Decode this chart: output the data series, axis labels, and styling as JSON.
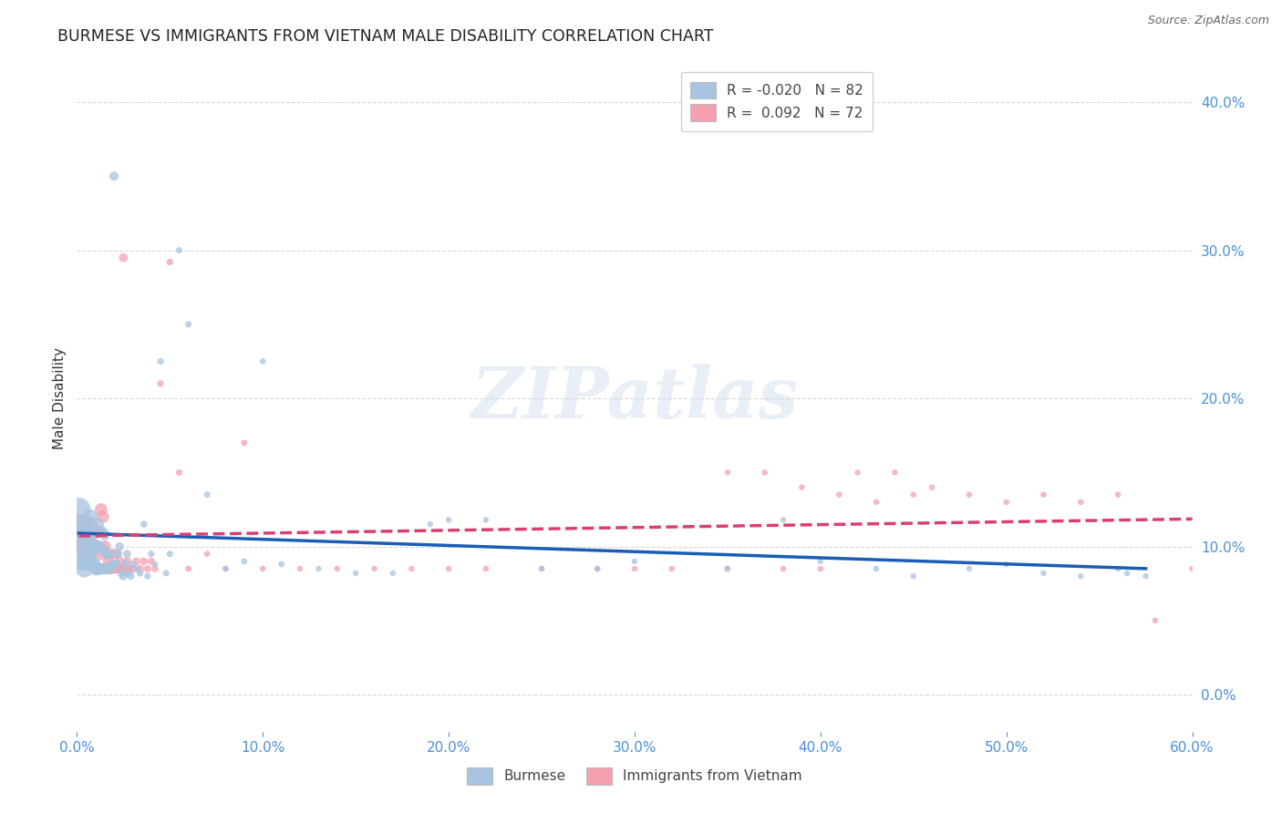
{
  "title": "BURMESE VS IMMIGRANTS FROM VIETNAM MALE DISABILITY CORRELATION CHART",
  "source": "Source: ZipAtlas.com",
  "ylabel": "Male Disability",
  "watermark": "ZIPatlas",
  "burmese_R": -0.02,
  "burmese_N": 82,
  "vietnam_R": 0.092,
  "vietnam_N": 72,
  "burmese_color": "#a8c4e0",
  "vietnam_color": "#f4a0b0",
  "burmese_line_color": "#1a5db5",
  "vietnam_line_color": "#d94070",
  "xlim": [
    0.0,
    0.6
  ],
  "ylim": [
    -0.025,
    0.425
  ],
  "yticks": [
    0.0,
    0.1,
    0.2,
    0.3,
    0.4
  ],
  "xticks": [
    0.0,
    0.1,
    0.2,
    0.3,
    0.4,
    0.5,
    0.6
  ],
  "background_color": "#ffffff",
  "grid_color": "#d8d8d8",
  "tick_label_color": "#4a90d9",
  "title_fontsize": 12.5,
  "axis_label_fontsize": 11,
  "legend_fontsize": 11,
  "burmese_x": [
    0.001,
    0.002,
    0.002,
    0.003,
    0.003,
    0.004,
    0.004,
    0.005,
    0.005,
    0.006,
    0.006,
    0.007,
    0.007,
    0.008,
    0.008,
    0.009,
    0.009,
    0.01,
    0.01,
    0.011,
    0.011,
    0.012,
    0.012,
    0.013,
    0.013,
    0.014,
    0.014,
    0.015,
    0.015,
    0.016,
    0.016,
    0.017,
    0.018,
    0.019,
    0.02,
    0.021,
    0.022,
    0.023,
    0.024,
    0.025,
    0.026,
    0.027,
    0.028,
    0.029,
    0.03,
    0.032,
    0.034,
    0.036,
    0.038,
    0.04,
    0.042,
    0.045,
    0.048,
    0.05,
    0.055,
    0.06,
    0.07,
    0.08,
    0.09,
    0.1,
    0.11,
    0.13,
    0.15,
    0.17,
    0.19,
    0.2,
    0.22,
    0.25,
    0.28,
    0.3,
    0.35,
    0.38,
    0.4,
    0.43,
    0.45,
    0.48,
    0.5,
    0.52,
    0.54,
    0.56,
    0.565,
    0.575
  ],
  "burmese_y": [
    0.125,
    0.11,
    0.095,
    0.105,
    0.09,
    0.115,
    0.085,
    0.105,
    0.09,
    0.11,
    0.09,
    0.12,
    0.095,
    0.1,
    0.088,
    0.11,
    0.088,
    0.1,
    0.085,
    0.115,
    0.085,
    0.1,
    0.085,
    0.11,
    0.085,
    0.098,
    0.085,
    0.108,
    0.085,
    0.095,
    0.085,
    0.095,
    0.085,
    0.088,
    0.35,
    0.088,
    0.095,
    0.1,
    0.082,
    0.08,
    0.088,
    0.095,
    0.082,
    0.08,
    0.088,
    0.085,
    0.082,
    0.115,
    0.08,
    0.095,
    0.088,
    0.225,
    0.082,
    0.095,
    0.3,
    0.25,
    0.135,
    0.085,
    0.09,
    0.225,
    0.088,
    0.085,
    0.082,
    0.082,
    0.115,
    0.118,
    0.118,
    0.085,
    0.085,
    0.09,
    0.085,
    0.118,
    0.09,
    0.085,
    0.08,
    0.085,
    0.088,
    0.082,
    0.08,
    0.085,
    0.082,
    0.08
  ],
  "burmese_size": [
    350,
    280,
    260,
    240,
    220,
    200,
    190,
    180,
    170,
    160,
    150,
    145,
    140,
    135,
    130,
    125,
    120,
    115,
    110,
    105,
    100,
    95,
    90,
    88,
    85,
    80,
    78,
    76,
    74,
    72,
    70,
    68,
    65,
    62,
    55,
    52,
    50,
    48,
    46,
    44,
    42,
    40,
    38,
    36,
    34,
    32,
    30,
    30,
    28,
    28,
    26,
    28,
    26,
    26,
    26,
    26,
    26,
    24,
    24,
    24,
    24,
    22,
    22,
    22,
    22,
    22,
    22,
    22,
    22,
    22,
    22,
    22,
    22,
    22,
    22,
    22,
    22,
    22,
    22,
    22,
    22,
    22
  ],
  "vietnam_x": [
    0.001,
    0.002,
    0.003,
    0.004,
    0.005,
    0.006,
    0.007,
    0.008,
    0.009,
    0.01,
    0.011,
    0.012,
    0.013,
    0.014,
    0.015,
    0.016,
    0.017,
    0.018,
    0.019,
    0.02,
    0.021,
    0.022,
    0.023,
    0.024,
    0.025,
    0.026,
    0.027,
    0.028,
    0.03,
    0.032,
    0.034,
    0.036,
    0.038,
    0.04,
    0.042,
    0.045,
    0.05,
    0.055,
    0.06,
    0.07,
    0.08,
    0.09,
    0.1,
    0.12,
    0.14,
    0.16,
    0.18,
    0.2,
    0.22,
    0.25,
    0.28,
    0.3,
    0.32,
    0.35,
    0.38,
    0.4,
    0.42,
    0.44,
    0.46,
    0.48,
    0.5,
    0.52,
    0.54,
    0.56,
    0.58,
    0.6,
    0.35,
    0.37,
    0.39,
    0.41,
    0.43,
    0.45
  ],
  "vietnam_y": [
    0.115,
    0.105,
    0.115,
    0.1,
    0.11,
    0.105,
    0.115,
    0.1,
    0.11,
    0.1,
    0.11,
    0.095,
    0.125,
    0.12,
    0.1,
    0.085,
    0.09,
    0.085,
    0.095,
    0.085,
    0.095,
    0.085,
    0.09,
    0.085,
    0.295,
    0.085,
    0.09,
    0.085,
    0.085,
    0.09,
    0.085,
    0.09,
    0.085,
    0.09,
    0.085,
    0.21,
    0.292,
    0.15,
    0.085,
    0.095,
    0.085,
    0.17,
    0.085,
    0.085,
    0.085,
    0.085,
    0.085,
    0.085,
    0.085,
    0.085,
    0.085,
    0.085,
    0.085,
    0.085,
    0.085,
    0.085,
    0.15,
    0.15,
    0.14,
    0.135,
    0.13,
    0.135,
    0.13,
    0.135,
    0.05,
    0.085,
    0.15,
    0.15,
    0.14,
    0.135,
    0.13,
    0.135
  ],
  "vietnam_size": [
    280,
    240,
    220,
    200,
    180,
    165,
    155,
    145,
    135,
    125,
    115,
    108,
    100,
    95,
    90,
    85,
    80,
    76,
    72,
    68,
    64,
    60,
    56,
    52,
    50,
    48,
    46,
    44,
    42,
    40,
    38,
    36,
    34,
    32,
    30,
    28,
    28,
    26,
    24,
    24,
    22,
    24,
    22,
    22,
    22,
    22,
    22,
    22,
    22,
    22,
    22,
    22,
    22,
    22,
    22,
    22,
    22,
    22,
    22,
    22,
    22,
    22,
    22,
    22,
    22,
    22,
    22,
    22,
    22,
    22,
    22,
    22
  ]
}
